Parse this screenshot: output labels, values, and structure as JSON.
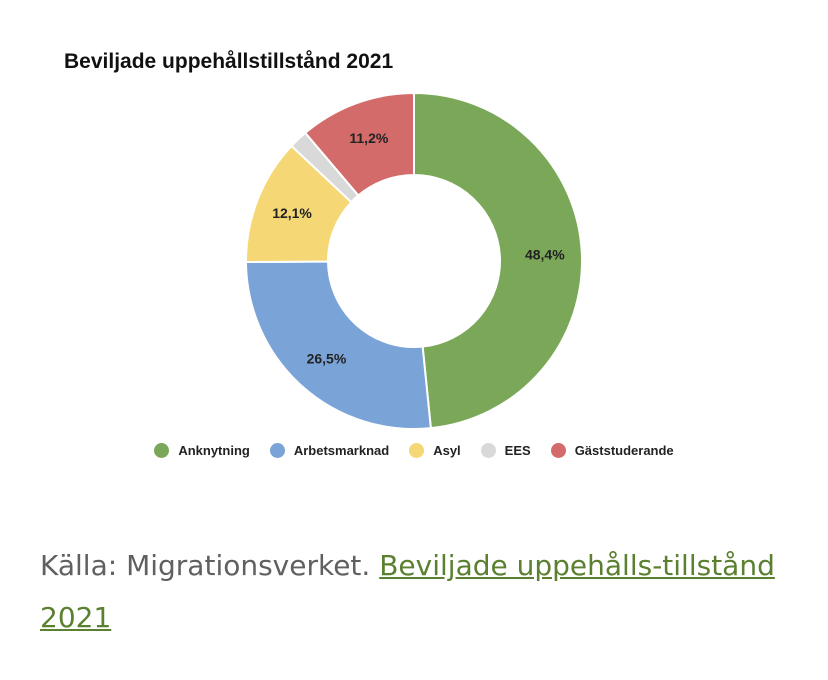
{
  "chart_data": {
    "type": "pie",
    "title": "Beviljade uppehållstillstånd 2021",
    "categories": [
      "Anknytning",
      "Arbetsmarknad",
      "Asyl",
      "EES",
      "Gäststuderande"
    ],
    "values": [
      48.4,
      26.5,
      12.1,
      1.8,
      11.2
    ],
    "value_labels": [
      "48,4%",
      "26,5%",
      "12,1%",
      "",
      "11,2%"
    ],
    "colors": [
      "#7ba858",
      "#7aa3d8",
      "#f5d775",
      "#d9d9d9",
      "#d46b6b"
    ],
    "donut": true,
    "legend_position": "bottom"
  },
  "caption": {
    "prefix": "Källa: Migrationsverket.",
    "link_text": "Beviljade uppehålls-tillstånd 2021"
  }
}
